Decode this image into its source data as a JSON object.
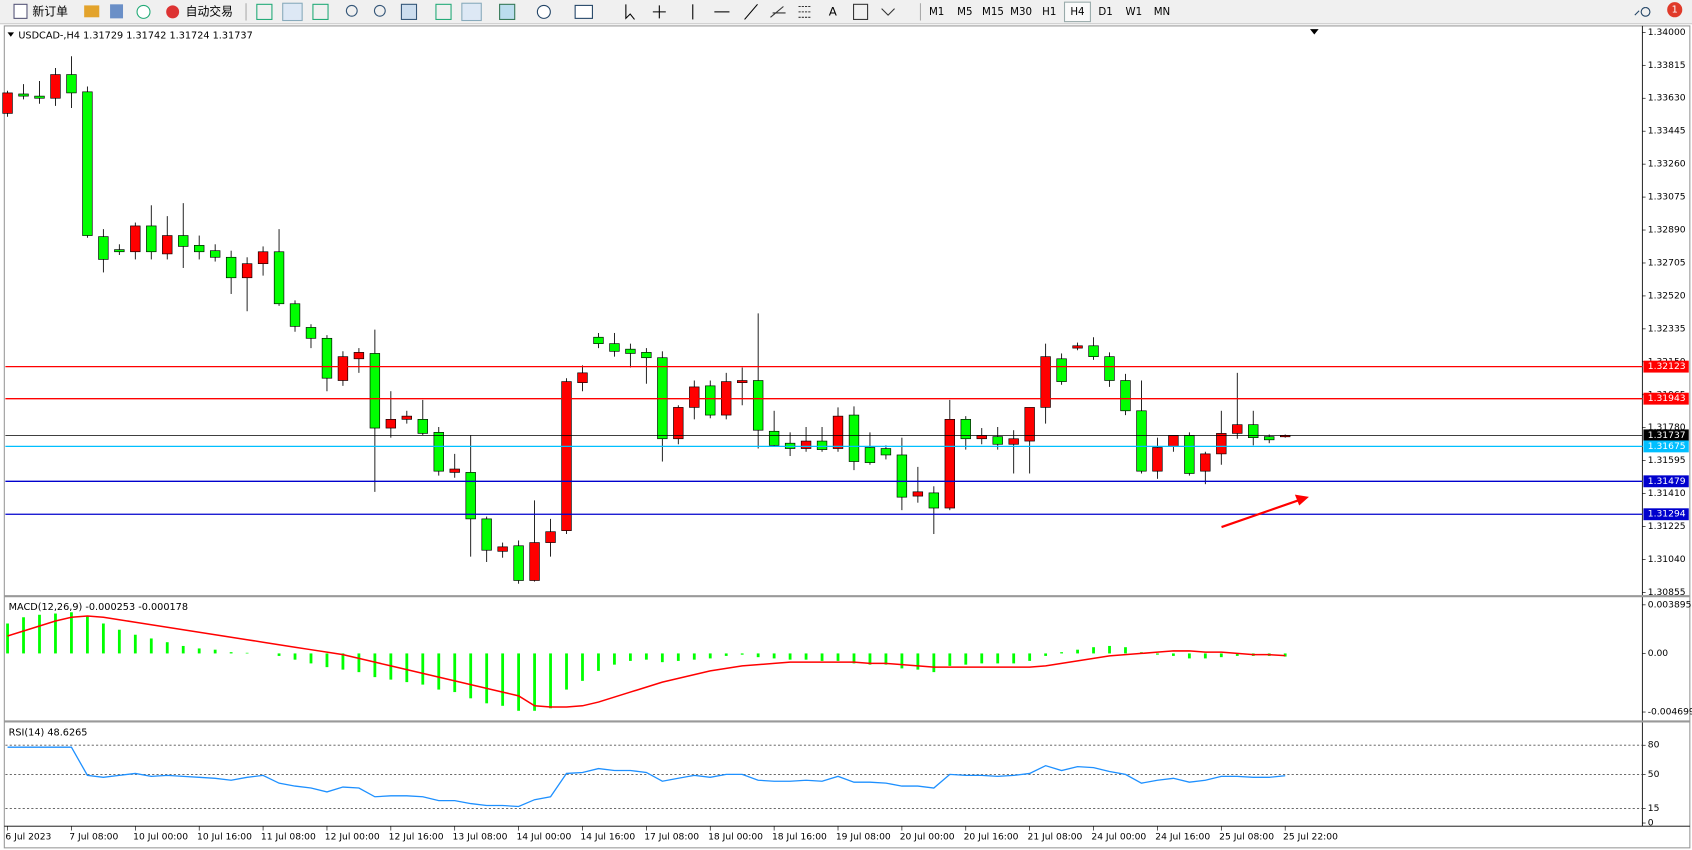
{
  "toolbar": {
    "new_order": "新订单",
    "auto_trading": "自动交易",
    "timeframes": [
      "M1",
      "M5",
      "M15",
      "M30",
      "H1",
      "H4",
      "D1",
      "W1",
      "MN"
    ],
    "active_timeframe": "H4",
    "notifications": "1"
  },
  "chart_data": [
    {
      "type": "candlestick",
      "title": "USDCAD-,H4  1.31729 1.31742 1.31724 1.31737",
      "up_color": "#ff0000",
      "down_color": "#00ff00",
      "wick_color": "#000000",
      "open": [
        1.33545,
        1.33654,
        1.33642,
        1.3363,
        1.33763,
        1.33666,
        1.32853,
        1.3278,
        1.32768,
        1.32913,
        1.32756,
        1.32859,
        1.32804,
        1.32774,
        1.32737,
        1.32622,
        1.32701,
        1.32768,
        1.32476,
        1.32343,
        1.32282,
        1.32045,
        1.32167,
        1.32197,
        1.31778,
        1.31827,
        1.31827,
        1.31754,
        1.31529,
        1.31529,
        1.31268,
        1.31086,
        1.31117,
        1.30922,
        1.31135,
        1.31202,
        1.32033,
        1.32288,
        1.32252,
        1.32221,
        1.32203,
        1.32173,
        1.31718,
        1.31894,
        1.32015,
        1.31851,
        1.32033,
        1.32045,
        1.3176,
        1.31693,
        1.31663,
        1.31705,
        1.31663,
        1.31851,
        1.31669,
        1.31663,
        1.31627,
        1.31396,
        1.31414,
        1.31329,
        1.31827,
        1.31718,
        1.3173,
        1.31687,
        1.31705,
        1.31894,
        1.32167,
        1.32227,
        1.3224,
        1.32179,
        1.32045,
        1.31875,
        1.31536,
        1.31675,
        1.31736,
        1.31536,
        1.31633,
        1.31748,
        1.31797,
        1.3173,
        1.31729
      ],
      "high": [
        1.33672,
        1.33709,
        1.33727,
        1.338,
        1.33866,
        1.33696,
        1.32895,
        1.3281,
        1.32932,
        1.33029,
        1.32968,
        1.33041,
        1.32859,
        1.3281,
        1.32774,
        1.32737,
        1.32798,
        1.32895,
        1.32495,
        1.32361,
        1.323,
        1.32209,
        1.32227,
        1.32331,
        1.31985,
        1.31875,
        1.31936,
        1.31784,
        1.31633,
        1.31736,
        1.31281,
        1.31135,
        1.31147,
        1.31372,
        1.31268,
        1.32058,
        1.3213,
        1.32312,
        1.32312,
        1.32252,
        1.32227,
        1.32209,
        1.31906,
        1.32045,
        1.32045,
        1.32088,
        1.32118,
        1.32422,
        1.31875,
        1.31754,
        1.31784,
        1.31784,
        1.31894,
        1.319,
        1.31754,
        1.31681,
        1.31724,
        1.3156,
        1.31451,
        1.31936,
        1.31845,
        1.31778,
        1.31784,
        1.31766,
        1.31894,
        1.32252,
        1.32197,
        1.32258,
        1.32288,
        1.32203,
        1.32082,
        1.32045,
        1.31724,
        1.31736,
        1.31754,
        1.31645,
        1.31875,
        1.32088,
        1.31875,
        1.31742,
        1.31742
      ],
      "low": [
        1.33526,
        1.33624,
        1.33599,
        1.33587,
        1.33575,
        1.32847,
        1.32652,
        1.3275,
        1.32725,
        1.32725,
        1.32725,
        1.32677,
        1.32725,
        1.32713,
        1.32531,
        1.32434,
        1.32634,
        1.32464,
        1.32319,
        1.32227,
        1.31985,
        1.32015,
        1.32088,
        1.3142,
        1.31724,
        1.31803,
        1.31736,
        1.31511,
        1.31499,
        1.31056,
        1.31026,
        1.3105,
        1.30904,
        1.30916,
        1.31056,
        1.31183,
        1.31985,
        1.32227,
        1.32179,
        1.32118,
        1.32027,
        1.3159,
        1.31687,
        1.31827,
        1.31833,
        1.31827,
        1.31906,
        1.31663,
        1.31675,
        1.31621,
        1.31645,
        1.31645,
        1.31645,
        1.31542,
        1.31572,
        1.31602,
        1.31317,
        1.31359,
        1.31183,
        1.31317,
        1.31657,
        1.31687,
        1.31657,
        1.31523,
        1.31523,
        1.31803,
        1.32021,
        1.32215,
        1.32161,
        1.32009,
        1.31851,
        1.31523,
        1.31493,
        1.31645,
        1.31511,
        1.31463,
        1.31572,
        1.31718,
        1.31681,
        1.31693,
        1.31724
      ],
      "close": [
        1.3366,
        1.33642,
        1.3363,
        1.33763,
        1.3366,
        1.32859,
        1.32725,
        1.32768,
        1.32913,
        1.32768,
        1.32859,
        1.32798,
        1.32768,
        1.32737,
        1.32622,
        1.32701,
        1.32768,
        1.32476,
        1.32349,
        1.32282,
        1.32058,
        1.32179,
        1.32203,
        1.31778,
        1.31827,
        1.31845,
        1.31748,
        1.31536,
        1.31548,
        1.31268,
        1.31092,
        1.31111,
        1.30922,
        1.31135,
        1.31196,
        1.32039,
        1.32088,
        1.32252,
        1.32209,
        1.32197,
        1.32173,
        1.31718,
        1.31894,
        1.32009,
        1.31851,
        1.32039,
        1.32045,
        1.31766,
        1.31681,
        1.31663,
        1.31705,
        1.31657,
        1.31845,
        1.3159,
        1.31584,
        1.31627,
        1.3139,
        1.3142,
        1.31329,
        1.31827,
        1.31718,
        1.31736,
        1.31687,
        1.31718,
        1.31894,
        1.32179,
        1.32039,
        1.3224,
        1.32179,
        1.32045,
        1.31875,
        1.31536,
        1.31669,
        1.31736,
        1.31523,
        1.31633,
        1.31748,
        1.31797,
        1.31724,
        1.31712,
        1.31737
      ],
      "ylim": [
        1.3084,
        1.34024
      ],
      "yticks": [
        {
          "value": 1.34,
          "label": "1.34000"
        },
        1.33815,
        {
          "value": 1.3363,
          "label": "1.33630"
        },
        1.33445,
        {
          "value": 1.3326,
          "label": "1.33260"
        },
        1.33075,
        {
          "value": 1.3289,
          "label": "1.32890"
        },
        1.32705,
        {
          "value": 1.3252,
          "label": "1.32520"
        },
        1.32335,
        {
          "value": 1.3215,
          "label": "1.32150"
        },
        1.31965,
        {
          "value": 1.3178,
          "label": "1.31780"
        },
        1.31595,
        {
          "value": 1.3141,
          "label": "1.31410"
        },
        1.31225,
        {
          "value": 1.3104,
          "label": "1.31040"
        },
        1.30855
      ],
      "levels": [
        {
          "value": 1.32123,
          "color": "#ff0000"
        },
        {
          "value": 1.31943,
          "color": "#ff0000"
        },
        {
          "value": 1.31737,
          "color": "#000000"
        },
        {
          "value": 1.31675,
          "color": "#00bfff"
        },
        {
          "value": 1.31479,
          "color": "#0000cd"
        },
        {
          "value": 1.31294,
          "color": "#0000cd"
        }
      ],
      "xticks": [
        {
          "value": 0,
          "label": "6 Jul 2023"
        },
        {
          "value": 4,
          "label": "7 Jul 08:00"
        },
        {
          "value": 8,
          "label": "10 Jul 00:00"
        },
        {
          "value": 12,
          "label": "10 Jul 16:00"
        },
        {
          "value": 16,
          "label": "11 Jul 08:00"
        },
        {
          "value": 20,
          "label": "12 Jul 00:00"
        },
        {
          "value": 24,
          "label": "12 Jul 16:00"
        },
        {
          "value": 28,
          "label": "13 Jul 08:00"
        },
        {
          "value": 32,
          "label": "14 Jul 00:00"
        },
        {
          "value": 36,
          "label": "14 Jul 16:00"
        },
        {
          "value": 40,
          "label": "17 Jul 08:00"
        },
        {
          "value": 44,
          "label": "18 Jul 00:00"
        },
        {
          "value": 48,
          "label": "18 Jul 16:00"
        },
        {
          "value": 52,
          "label": "19 Jul 08:00"
        },
        {
          "value": 56,
          "label": "20 Jul 00:00"
        },
        {
          "value": 60,
          "label": "20 Jul 16:00"
        },
        {
          "value": 64,
          "label": "21 Jul 08:00"
        },
        {
          "value": 68,
          "label": "24 Jul 00:00"
        },
        {
          "value": 72,
          "label": "24 Jul 16:00"
        },
        {
          "value": 76,
          "label": "25 Jul 08:00"
        },
        {
          "value": 80,
          "label": "25 Jul 22:00"
        }
      ]
    },
    {
      "type": "macd",
      "title": "MACD(12,26,9) -0.000253 -0.000178",
      "histogram": {
        "color": "#00ff00",
        "values": [
          0.0024,
          0.0029,
          0.0031,
          0.0032,
          0.0033,
          0.003,
          0.0024,
          0.0019,
          0.0015,
          0.0012,
          0.0009,
          0.0006,
          0.0004,
          0.0003,
          0.0001,
          5e-05,
          0,
          -0.0002,
          -0.0005,
          -0.0008,
          -0.0011,
          -0.0013,
          -0.0015,
          -0.0019,
          -0.0021,
          -0.0023,
          -0.0025,
          -0.0029,
          -0.0031,
          -0.0036,
          -0.004,
          -0.0042,
          -0.0046,
          -0.0046,
          -0.0044,
          -0.0029,
          -0.0022,
          -0.0014,
          -0.0009,
          -0.0006,
          -0.0005,
          -0.0007,
          -0.0006,
          -0.0005,
          -0.0004,
          -0.0002,
          -0.0001,
          -0.0003,
          -0.0004,
          -0.0005,
          -0.0005,
          -0.0006,
          -0.0006,
          -0.0008,
          -0.0009,
          -0.0009,
          -0.0012,
          -0.0013,
          -0.0015,
          -0.001,
          -0.0009,
          -0.0008,
          -0.0008,
          -0.0008,
          -0.0006,
          -0.0002,
          0.0001,
          0.0003,
          0.0005,
          0.0006,
          0.0005,
          0.0001,
          -0.0001,
          -0.0002,
          -0.0004,
          -0.0004,
          -0.0003,
          -0.0002,
          -0.0002,
          -0.0002,
          -0.000253
        ]
      },
      "signal": {
        "color": "#ff0000",
        "values": [
          0.0014,
          0.0018,
          0.0022,
          0.0026,
          0.0029,
          0.003,
          0.0029,
          0.0027,
          0.0025,
          0.0023,
          0.0021,
          0.0019,
          0.0017,
          0.0015,
          0.0013,
          0.0011,
          0.0009,
          0.0007,
          0.0005,
          0.0003,
          0.0001,
          -0.0001,
          -0.0004,
          -0.0007,
          -0.001,
          -0.0013,
          -0.0016,
          -0.0019,
          -0.0022,
          -0.0025,
          -0.0028,
          -0.0031,
          -0.0034,
          -0.0042,
          -0.0043,
          -0.0043,
          -0.0042,
          -0.0039,
          -0.0035,
          -0.0031,
          -0.0027,
          -0.0023,
          -0.002,
          -0.0017,
          -0.0014,
          -0.0012,
          -0.001,
          -0.0009,
          -0.0008,
          -0.0007,
          -0.0007,
          -0.0007,
          -0.0007,
          -0.0007,
          -0.0008,
          -0.0008,
          -0.0009,
          -0.001,
          -0.0011,
          -0.0011,
          -0.0011,
          -0.0011,
          -0.0011,
          -0.0011,
          -0.0011,
          -0.001,
          -0.0008,
          -0.0006,
          -0.0004,
          -0.0002,
          -0.0001,
          0,
          0.0001,
          0.0002,
          0.0002,
          0.0001,
          0.0001,
          0,
          -0.0001,
          -0.0001,
          -0.000178
        ]
      },
      "ylim": [
        -0.00537,
        0.00433
      ],
      "yticks": [
        0.003895,
        {
          "value": 0,
          "label": "0.00"
        },
        -0.004699
      ]
    },
    {
      "type": "line",
      "title": "RSI(14) 48.6265",
      "color": "#1e90ff",
      "values": [
        78,
        78,
        78,
        78,
        78,
        49,
        47,
        49,
        51,
        48,
        49,
        48,
        47,
        46,
        44,
        47,
        49,
        41,
        38,
        36,
        32,
        37,
        36,
        27,
        28,
        28,
        27,
        23,
        23,
        20,
        18,
        18,
        17,
        24,
        27,
        51,
        52,
        56,
        54,
        54,
        52,
        43,
        46,
        49,
        47,
        50,
        50,
        44,
        43,
        43,
        44,
        43,
        48,
        42,
        42,
        41,
        38,
        38,
        36,
        50,
        49,
        49,
        48,
        49,
        51,
        59,
        54,
        58,
        57,
        53,
        50,
        41,
        44,
        46,
        42,
        44,
        48,
        48,
        47,
        47,
        48.6265
      ],
      "ylim": [
        -3.3,
        101.1
      ],
      "yticks": [
        80,
        50,
        15,
        0
      ],
      "levels": [
        80,
        50,
        15
      ]
    }
  ]
}
